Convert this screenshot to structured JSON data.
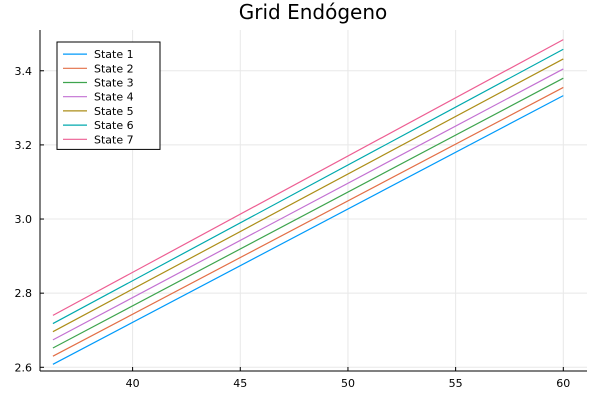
{
  "chart_data": {
    "type": "line",
    "title": "Grid Endógeno",
    "xlabel": "",
    "ylabel": "",
    "xlim": [
      35.7,
      61.1
    ],
    "ylim": [
      2.59,
      3.51
    ],
    "xticks": [
      40,
      45,
      50,
      55,
      60
    ],
    "xtick_labels": [
      "40",
      "45",
      "50",
      "55",
      "60"
    ],
    "yticks": [
      2.6,
      2.8,
      3.0,
      3.2,
      3.4
    ],
    "ytick_labels": [
      "2.6",
      "2.8",
      "3.0",
      "3.2",
      "3.4"
    ],
    "grid": true,
    "legend_position": "top-left",
    "series": [
      {
        "name": "State 1",
        "color": "#009AFA",
        "x": [
          36.3,
          60.0
        ],
        "y": [
          2.608,
          3.333
        ]
      },
      {
        "name": "State 2",
        "color": "#E36F47",
        "x": [
          36.3,
          60.0
        ],
        "y": [
          2.63,
          3.355
        ]
      },
      {
        "name": "State 3",
        "color": "#3EA44E",
        "x": [
          36.3,
          60.0
        ],
        "y": [
          2.652,
          3.38
        ]
      },
      {
        "name": "State 4",
        "color": "#C371D2",
        "x": [
          36.3,
          60.0
        ],
        "y": [
          2.674,
          3.405
        ]
      },
      {
        "name": "State 5",
        "color": "#AC8E18",
        "x": [
          36.3,
          60.0
        ],
        "y": [
          2.696,
          3.432
        ]
      },
      {
        "name": "State 6",
        "color": "#00A9AD",
        "x": [
          36.3,
          60.0
        ],
        "y": [
          2.718,
          3.458
        ]
      },
      {
        "name": "State 7",
        "color": "#ED5E93",
        "x": [
          36.3,
          60.0
        ],
        "y": [
          2.74,
          3.484
        ]
      }
    ]
  }
}
